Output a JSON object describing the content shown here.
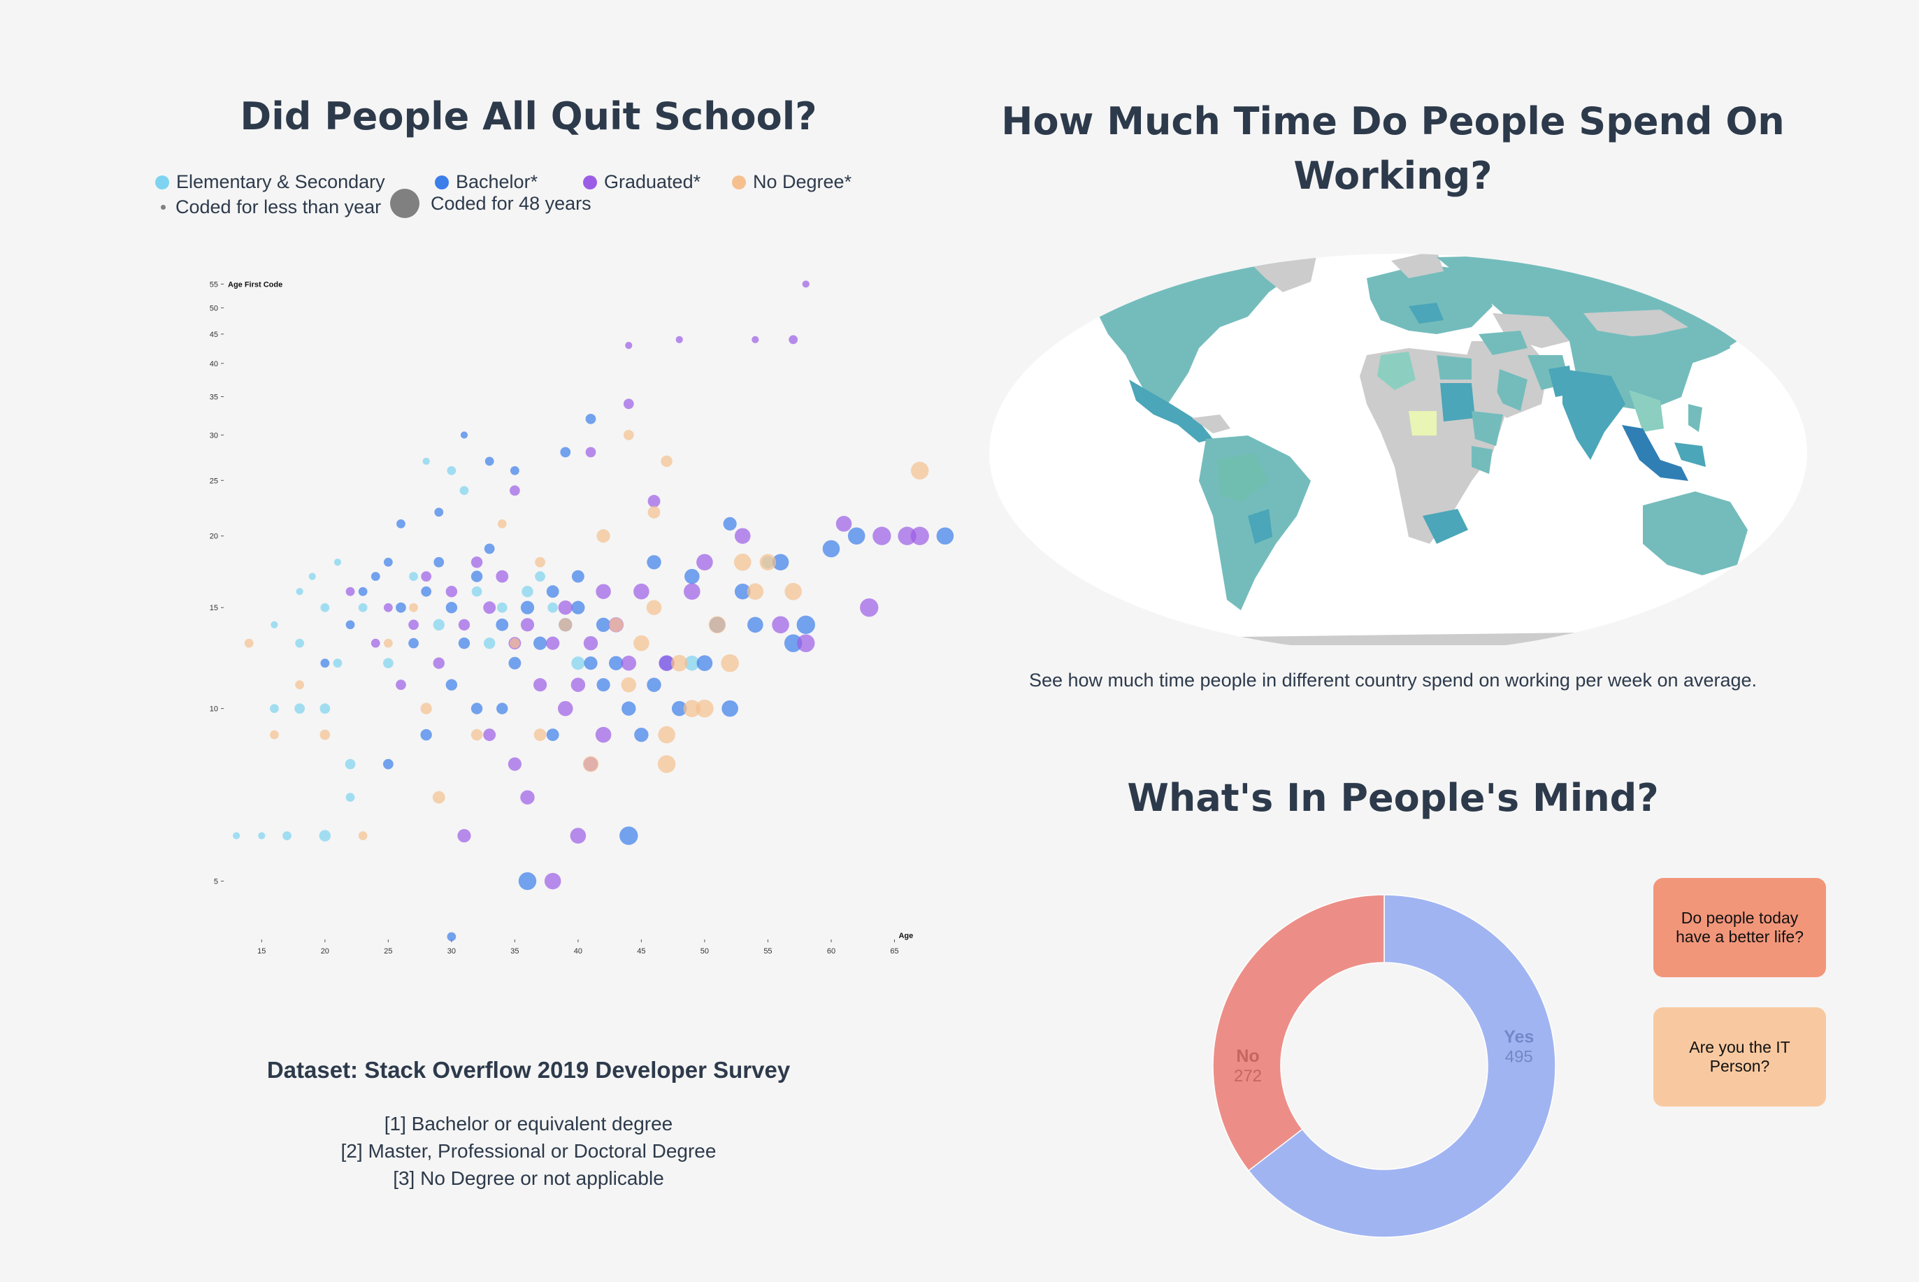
{
  "titles": {
    "school": "Did People All Quit School?",
    "time": "How Much Time Do People Spend On Working?",
    "mind": "What's In People's Mind?"
  },
  "legend": {
    "items": [
      {
        "label": "Elementary & Secondary",
        "color": "#7dd3f0"
      },
      {
        "label": "Bachelor*",
        "color": "#3b7de9"
      },
      {
        "label": "Graduated*",
        "color": "#9b5de5"
      },
      {
        "label": "No Degree*",
        "color": "#f5c08e"
      }
    ],
    "size_small": "Coded for less than year",
    "size_large": "Coded for 48 years"
  },
  "map_caption": "See how much time people in different country spend on working per week on average.",
  "dataset": {
    "title": "Dataset: Stack Overflow 2019 Developer Survey",
    "notes": [
      "[1] Bachelor or equivalent degree",
      "[2] Master, Professional or Doctoral Degree",
      "[3] No Degree or not applicable"
    ]
  },
  "questions": {
    "q1": "Do people today have a better life?",
    "q2": "Are you the IT Person?"
  },
  "chart_data": [
    {
      "type": "scatter",
      "title": "Did People All Quit School?",
      "xlabel": "Age",
      "ylabel": "Age First Code",
      "xlim": [
        12,
        70
      ],
      "ylim": [
        4,
        56
      ],
      "yscale": "log",
      "xticks": [
        15,
        20,
        25,
        30,
        35,
        40,
        45,
        50,
        55,
        60,
        65
      ],
      "yticks": [
        5,
        10,
        15,
        20,
        25,
        30,
        35,
        40,
        45,
        50,
        55
      ],
      "grid": false,
      "legend_position": "top",
      "size_meaning": "years coded (0 to 48)",
      "series": [
        {
          "name": "Elementary & Secondary",
          "points": [
            [
              13,
              6,
              1
            ],
            [
              15,
              6,
              1
            ],
            [
              17,
              6,
              2
            ],
            [
              16,
              10,
              2
            ],
            [
              18,
              10,
              3
            ],
            [
              20,
              10,
              3
            ],
            [
              21,
              12,
              2
            ],
            [
              18,
              13,
              2
            ],
            [
              20,
              15,
              2
            ],
            [
              22,
              8,
              3
            ],
            [
              19,
              17,
              1
            ],
            [
              21,
              18,
              1
            ],
            [
              23,
              15,
              2
            ],
            [
              25,
              12,
              3
            ],
            [
              27,
              17,
              2
            ],
            [
              29,
              14,
              4
            ],
            [
              20,
              6,
              4
            ],
            [
              22,
              7,
              2
            ],
            [
              28,
              27,
              1
            ],
            [
              30,
              26,
              2
            ],
            [
              31,
              24,
              2
            ],
            [
              32,
              16,
              3
            ],
            [
              34,
              15,
              3
            ],
            [
              36,
              16,
              4
            ],
            [
              37,
              17,
              3
            ],
            [
              40,
              12,
              6
            ],
            [
              49,
              12,
              8
            ],
            [
              55,
              18,
              5
            ],
            [
              38,
              15,
              3
            ],
            [
              33,
              13,
              4
            ],
            [
              16,
              14,
              1
            ],
            [
              18,
              16,
              1
            ]
          ]
        },
        {
          "name": "Bachelor*",
          "points": [
            [
              20,
              12,
              2
            ],
            [
              22,
              14,
              2
            ],
            [
              23,
              16,
              2
            ],
            [
              24,
              17,
              2
            ],
            [
              25,
              18,
              2
            ],
            [
              26,
              15,
              3
            ],
            [
              27,
              13,
              3
            ],
            [
              28,
              16,
              3
            ],
            [
              29,
              18,
              3
            ],
            [
              30,
              15,
              4
            ],
            [
              31,
              13,
              4
            ],
            [
              32,
              17,
              4
            ],
            [
              33,
              19,
              3
            ],
            [
              34,
              14,
              5
            ],
            [
              35,
              12,
              5
            ],
            [
              36,
              15,
              6
            ],
            [
              37,
              13,
              6
            ],
            [
              38,
              16,
              5
            ],
            [
              39,
              14,
              6
            ],
            [
              40,
              15,
              6
            ],
            [
              41,
              12,
              6
            ],
            [
              42,
              14,
              7
            ],
            [
              43,
              12,
              7
            ],
            [
              44,
              10,
              7
            ],
            [
              45,
              9,
              7
            ],
            [
              46,
              11,
              7
            ],
            [
              47,
              12,
              8
            ],
            [
              48,
              10,
              8
            ],
            [
              49,
              17,
              8
            ],
            [
              50,
              12,
              9
            ],
            [
              51,
              14,
              9
            ],
            [
              52,
              10,
              10
            ],
            [
              53,
              16,
              9
            ],
            [
              54,
              14,
              9
            ],
            [
              56,
              18,
              10
            ],
            [
              57,
              13,
              12
            ],
            [
              58,
              14,
              13
            ],
            [
              60,
              19,
              11
            ],
            [
              62,
              20,
              11
            ],
            [
              69,
              20,
              11
            ],
            [
              44,
              6,
              13
            ],
            [
              36,
              5,
              12
            ],
            [
              25,
              8,
              3
            ],
            [
              28,
              9,
              4
            ],
            [
              30,
              11,
              4
            ],
            [
              32,
              10,
              4
            ],
            [
              34,
              10,
              4
            ],
            [
              31,
              30,
              1
            ],
            [
              33,
              27,
              2
            ],
            [
              35,
              26,
              2
            ],
            [
              39,
              28,
              3
            ],
            [
              41,
              32,
              3
            ],
            [
              52,
              21,
              6
            ],
            [
              46,
              18,
              7
            ],
            [
              30,
              4,
              2
            ],
            [
              26,
              21,
              2
            ],
            [
              29,
              22,
              2
            ],
            [
              38,
              9,
              5
            ],
            [
              42,
              11,
              6
            ],
            [
              40,
              17,
              5
            ]
          ]
        },
        {
          "name": "Graduated*",
          "points": [
            [
              22,
              16,
              2
            ],
            [
              24,
              13,
              2
            ],
            [
              25,
              15,
              2
            ],
            [
              26,
              11,
              3
            ],
            [
              27,
              14,
              3
            ],
            [
              28,
              17,
              3
            ],
            [
              29,
              12,
              4
            ],
            [
              30,
              16,
              4
            ],
            [
              31,
              14,
              4
            ],
            [
              32,
              18,
              4
            ],
            [
              33,
              15,
              5
            ],
            [
              34,
              17,
              5
            ],
            [
              35,
              13,
              5
            ],
            [
              36,
              14,
              6
            ],
            [
              37,
              11,
              6
            ],
            [
              38,
              13,
              6
            ],
            [
              39,
              15,
              7
            ],
            [
              40,
              11,
              7
            ],
            [
              41,
              13,
              7
            ],
            [
              42,
              16,
              8
            ],
            [
              43,
              14,
              8
            ],
            [
              44,
              12,
              8
            ],
            [
              45,
              16,
              9
            ],
            [
              47,
              12,
              9
            ],
            [
              49,
              16,
              10
            ],
            [
              50,
              18,
              10
            ],
            [
              53,
              20,
              9
            ],
            [
              56,
              14,
              11
            ],
            [
              58,
              13,
              12
            ],
            [
              63,
              15,
              13
            ],
            [
              61,
              21,
              9
            ],
            [
              64,
              20,
              13
            ],
            [
              67,
              20,
              13
            ],
            [
              66,
              20,
              13
            ],
            [
              38,
              5,
              10
            ],
            [
              40,
              6,
              9
            ],
            [
              36,
              7,
              7
            ],
            [
              31,
              6,
              6
            ],
            [
              33,
              9,
              5
            ],
            [
              35,
              8,
              6
            ],
            [
              41,
              8,
              7
            ],
            [
              44,
              34,
              3
            ],
            [
              41,
              28,
              3
            ],
            [
              35,
              24,
              3
            ],
            [
              42,
              9,
              9
            ],
            [
              46,
              23,
              5
            ],
            [
              57,
              44,
              2
            ],
            [
              58,
              55,
              1
            ],
            [
              48,
              44,
              1
            ],
            [
              54,
              44,
              1
            ],
            [
              44,
              43,
              1
            ],
            [
              39,
              10,
              8
            ]
          ]
        },
        {
          "name": "No Degree*",
          "points": [
            [
              14,
              13,
              2
            ],
            [
              16,
              9,
              2
            ],
            [
              18,
              11,
              2
            ],
            [
              20,
              9,
              3
            ],
            [
              23,
              6,
              2
            ],
            [
              25,
              13,
              2
            ],
            [
              27,
              15,
              2
            ],
            [
              28,
              10,
              4
            ],
            [
              29,
              7,
              5
            ],
            [
              32,
              9,
              4
            ],
            [
              34,
              21,
              2
            ],
            [
              35,
              13,
              3
            ],
            [
              37,
              9,
              5
            ],
            [
              39,
              14,
              6
            ],
            [
              41,
              8,
              9
            ],
            [
              43,
              14,
              7
            ],
            [
              44,
              11,
              8
            ],
            [
              45,
              13,
              9
            ],
            [
              46,
              15,
              8
            ],
            [
              47,
              9,
              11
            ],
            [
              48,
              12,
              10
            ],
            [
              49,
              10,
              11
            ],
            [
              50,
              10,
              12
            ],
            [
              51,
              14,
              11
            ],
            [
              52,
              12,
              12
            ],
            [
              53,
              18,
              11
            ],
            [
              54,
              16,
              10
            ],
            [
              55,
              18,
              10
            ],
            [
              57,
              16,
              11
            ],
            [
              44,
              30,
              3
            ],
            [
              47,
              27,
              4
            ],
            [
              46,
              22,
              5
            ],
            [
              42,
              20,
              6
            ],
            [
              67,
              26,
              12
            ],
            [
              47,
              8,
              12
            ],
            [
              37,
              18,
              3
            ]
          ]
        }
      ]
    },
    {
      "type": "pie",
      "title": "What's In People's Mind?",
      "labels": [
        "Yes",
        "No"
      ],
      "values": [
        495,
        272
      ],
      "colors": [
        "#a1b4f2",
        "#ec8e87"
      ],
      "donut": true
    }
  ]
}
